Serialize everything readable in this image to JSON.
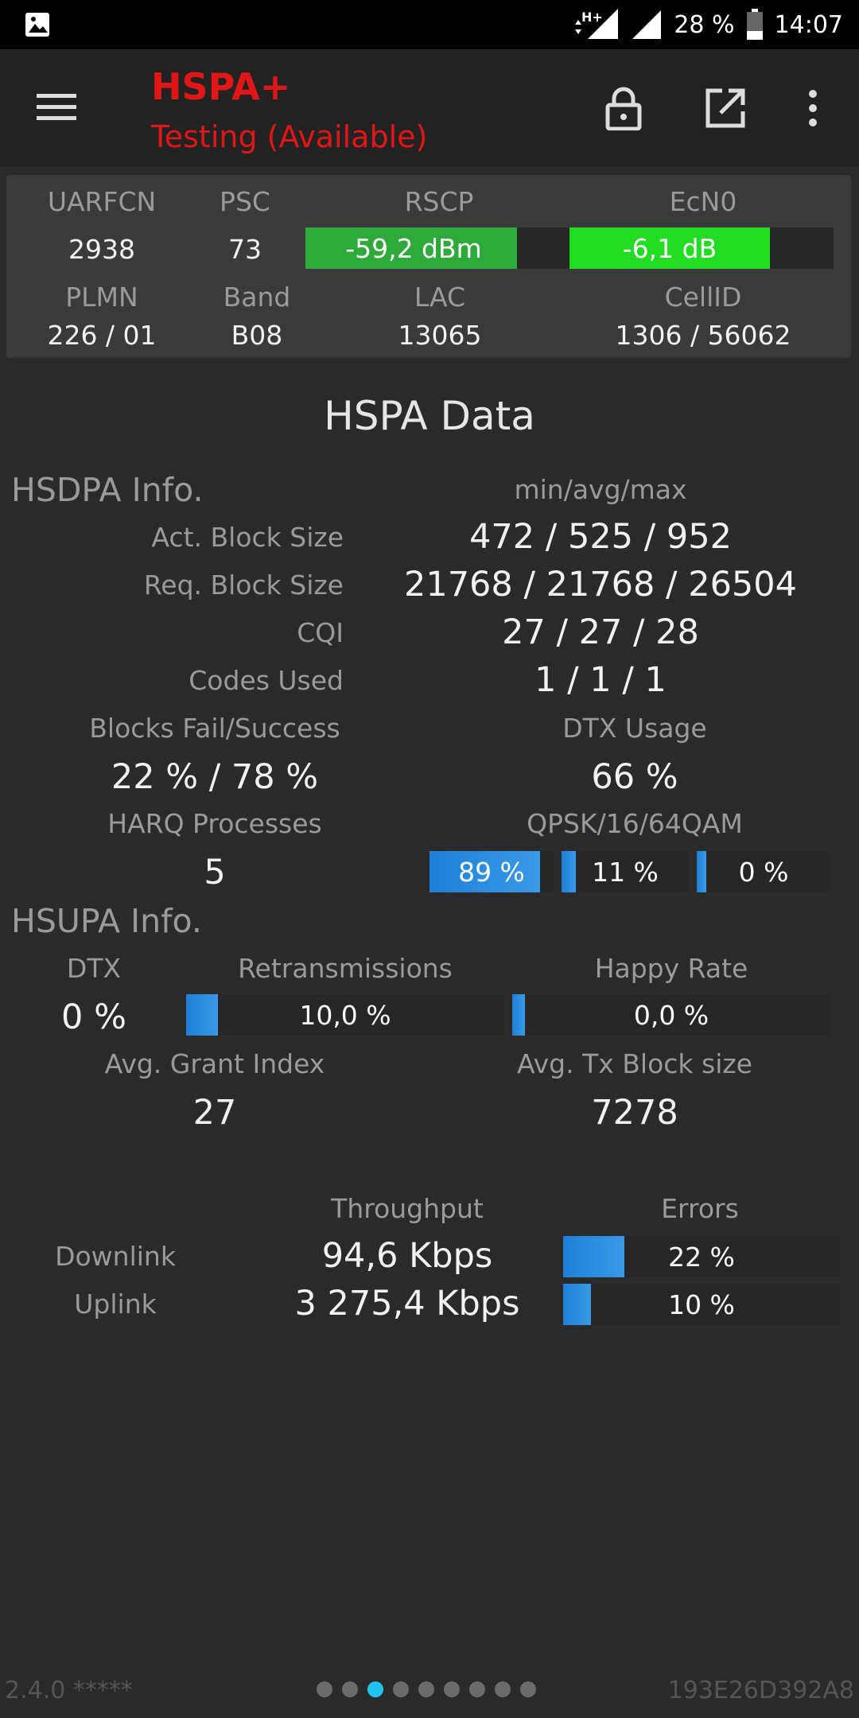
{
  "status_bar": {
    "network": "H+",
    "battery": "28 %",
    "time": "14:07"
  },
  "app_bar": {
    "title": "HSPA+",
    "subtitle": "Testing (Available)"
  },
  "cell": {
    "uarfcn_label": "UARFCN",
    "uarfcn": "2938",
    "psc_label": "PSC",
    "psc": "73",
    "rscp_label": "RSCP",
    "rscp": "-59,2 dBm",
    "rscp_level": 0.8,
    "ecn0_label": "EcN0",
    "ecn0": "-6,1 dB",
    "ecn0_level": 0.76,
    "plmn_label": "PLMN",
    "plmn": "226 / 01",
    "band_label": "Band",
    "band": "B08",
    "lac_label": "LAC",
    "lac": "13065",
    "cellid_label": "CellID",
    "cellid": "1306 / 56062",
    "colors": {
      "rscp": "#2eaa3a",
      "ecn0": "#22dd22"
    }
  },
  "hspa": {
    "heading": "HSPA Data",
    "hsdpa_title": "HSDPA Info.",
    "minavgmax_label": "min/avg/max",
    "act_block_label": "Act. Block Size",
    "act_block": "472 / 525 / 952",
    "req_block_label": "Req. Block Size",
    "req_block": "21768 / 21768 / 26504",
    "cqi_label": "CQI",
    "cqi": "27 / 27 / 28",
    "codes_label": "Codes Used",
    "codes": "1 / 1 / 1",
    "blocks_label": "Blocks Fail/Success",
    "blocks": "22 % / 78 %",
    "dtx_usage_label": "DTX Usage",
    "dtx_usage": "66 %",
    "harq_label": "HARQ Processes",
    "harq": "5",
    "qam_label": "QPSK/16/64QAM",
    "qam": [
      {
        "text": "89 %",
        "level": 0.89
      },
      {
        "text": "11 %",
        "level": 0.11
      },
      {
        "text": "0 %",
        "level": 0.0
      }
    ],
    "hsupa_title": "HSUPA Info.",
    "dtx_label": "DTX",
    "dtx": "0 %",
    "retrans_label": "Retransmissions",
    "retrans": "10,0 %",
    "retrans_level": 0.1,
    "happy_label": "Happy Rate",
    "happy": "0,0 %",
    "happy_level": 0.0,
    "grant_label": "Avg. Grant Index",
    "grant": "27",
    "txblock_label": "Avg. Tx Block size",
    "txblock": "7278",
    "throughput_label": "Throughput",
    "errors_label": "Errors",
    "downlink_label": "Downlink",
    "downlink": "94,6 Kbps",
    "downlink_err": "22 %",
    "downlink_err_level": 0.22,
    "uplink_label": "Uplink",
    "uplink": "3 275,4 Kbps",
    "uplink_err": "10 %",
    "uplink_err_level": 0.1,
    "bar_color": "#1f7fd6"
  },
  "footer": {
    "version": "2.4.0 *****",
    "device_id": "193E26D392A8",
    "page_count": 9,
    "active_page": 3
  }
}
